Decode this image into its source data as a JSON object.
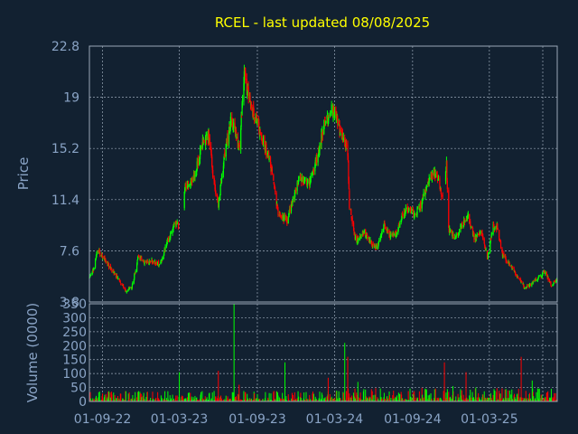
{
  "chart_data": [
    {
      "type": "candlestick",
      "title": "RCEL - last updated 08/08/2025",
      "ylabel": "Price",
      "ylim": [
        3.8,
        22.8
      ],
      "y_ticks": [
        "22.8",
        "19",
        "15.2",
        "11.4",
        "7.6",
        "3.8"
      ],
      "up_color": "#00ff00",
      "down_color": "#ff0000",
      "price_anchors": [
        [
          "2022-08-01",
          5.6
        ],
        [
          "2022-08-10",
          6.2
        ],
        [
          "2022-08-20",
          7.6
        ],
        [
          "2022-09-01",
          7.2
        ],
        [
          "2022-09-20",
          6.3
        ],
        [
          "2022-10-10",
          5.5
        ],
        [
          "2022-10-25",
          4.6
        ],
        [
          "2022-11-10",
          5.0
        ],
        [
          "2022-11-25",
          7.3
        ],
        [
          "2022-12-10",
          6.6
        ],
        [
          "2022-12-28",
          6.9
        ],
        [
          "2023-01-15",
          6.5
        ],
        [
          "2023-02-01",
          8.3
        ],
        [
          "2023-02-20",
          9.7
        ],
        [
          "2023-03-05",
          9.3
        ],
        [
          "2023-03-15",
          12.5
        ],
        [
          "2023-04-05",
          13.2
        ],
        [
          "2023-04-25",
          15.6
        ],
        [
          "2023-05-10",
          16.2
        ],
        [
          "2023-05-20",
          13.0
        ],
        [
          "2023-06-01",
          11.0
        ],
        [
          "2023-06-15",
          14.5
        ],
        [
          "2023-07-01",
          17.5
        ],
        [
          "2023-07-20",
          15.2
        ],
        [
          "2023-08-01",
          20.8
        ],
        [
          "2023-08-15",
          18.5
        ],
        [
          "2023-09-01",
          17.0
        ],
        [
          "2023-09-15",
          15.8
        ],
        [
          "2023-10-01",
          14.0
        ],
        [
          "2023-10-20",
          10.5
        ],
        [
          "2023-11-10",
          9.8
        ],
        [
          "2023-11-25",
          11.5
        ],
        [
          "2023-12-10",
          13.0
        ],
        [
          "2024-01-01",
          12.5
        ],
        [
          "2024-01-20",
          14.5
        ],
        [
          "2024-02-05",
          16.8
        ],
        [
          "2024-02-25",
          18.2
        ],
        [
          "2024-03-10",
          17.0
        ],
        [
          "2024-03-25",
          15.5
        ],
        [
          "2024-04-01",
          15.0
        ],
        [
          "2024-04-05",
          11.0
        ],
        [
          "2024-04-20",
          8.3
        ],
        [
          "2024-05-10",
          9.0
        ],
        [
          "2024-05-25",
          8.2
        ],
        [
          "2024-06-10",
          7.8
        ],
        [
          "2024-06-25",
          9.5
        ],
        [
          "2024-07-10",
          8.7
        ],
        [
          "2024-07-25",
          8.8
        ],
        [
          "2024-08-10",
          10.5
        ],
        [
          "2024-08-25",
          10.8
        ],
        [
          "2024-09-05",
          10.2
        ],
        [
          "2024-09-20",
          11.0
        ],
        [
          "2024-10-05",
          12.5
        ],
        [
          "2024-10-20",
          13.5
        ],
        [
          "2024-11-01",
          13.0
        ],
        [
          "2024-11-10",
          11.5
        ],
        [
          "2024-11-20",
          14.0
        ],
        [
          "2024-11-25",
          9.2
        ],
        [
          "2024-12-10",
          8.5
        ],
        [
          "2024-12-25",
          9.5
        ],
        [
          "2025-01-10",
          10.2
        ],
        [
          "2025-01-25",
          8.5
        ],
        [
          "2025-02-10",
          9.0
        ],
        [
          "2025-02-25",
          7.0
        ],
        [
          "2025-03-10",
          9.5
        ],
        [
          "2025-03-20",
          9.3
        ],
        [
          "2025-04-01",
          7.3
        ],
        [
          "2025-04-20",
          6.5
        ],
        [
          "2025-05-10",
          5.5
        ],
        [
          "2025-05-25",
          4.8
        ],
        [
          "2025-06-10",
          5.2
        ],
        [
          "2025-06-25",
          5.6
        ],
        [
          "2025-07-10",
          6.0
        ],
        [
          "2025-07-25",
          5.0
        ],
        [
          "2025-08-08",
          5.5
        ]
      ],
      "data_gaps": [
        [
          "2023-02-28",
          "2023-03-10"
        ],
        [
          "2024-11-12",
          "2024-11-16"
        ]
      ]
    },
    {
      "type": "bar",
      "ylabel": "Volume (0000)",
      "ylim": [
        0,
        350
      ],
      "y_ticks": [
        "350",
        "300",
        "250",
        "200",
        "150",
        "100",
        "50",
        "0"
      ],
      "x_date_range": [
        "2022-08-01",
        "2025-08-08"
      ],
      "x_tick_labels": [
        "01-09-22",
        "01-03-23",
        "01-09-23",
        "01-03-24",
        "01-09-24",
        "01-03-25"
      ],
      "x_tick_dates": [
        "2022-09-01",
        "2023-03-01",
        "2023-09-01",
        "2024-03-01",
        "2024-09-01",
        "2025-03-01"
      ],
      "volume_spikes": [
        [
          "2023-03-01",
          105
        ],
        [
          "2023-06-01",
          110
        ],
        [
          "2023-07-08",
          350
        ],
        [
          "2023-07-20",
          60
        ],
        [
          "2023-11-05",
          140
        ],
        [
          "2024-02-15",
          85
        ],
        [
          "2024-03-25",
          210
        ],
        [
          "2024-04-01",
          160
        ],
        [
          "2024-04-25",
          70
        ],
        [
          "2024-11-15",
          140
        ],
        [
          "2024-12-05",
          55
        ],
        [
          "2025-01-05",
          105
        ],
        [
          "2025-01-28",
          50
        ],
        [
          "2025-05-15",
          160
        ],
        [
          "2025-06-10",
          75
        ]
      ]
    }
  ]
}
